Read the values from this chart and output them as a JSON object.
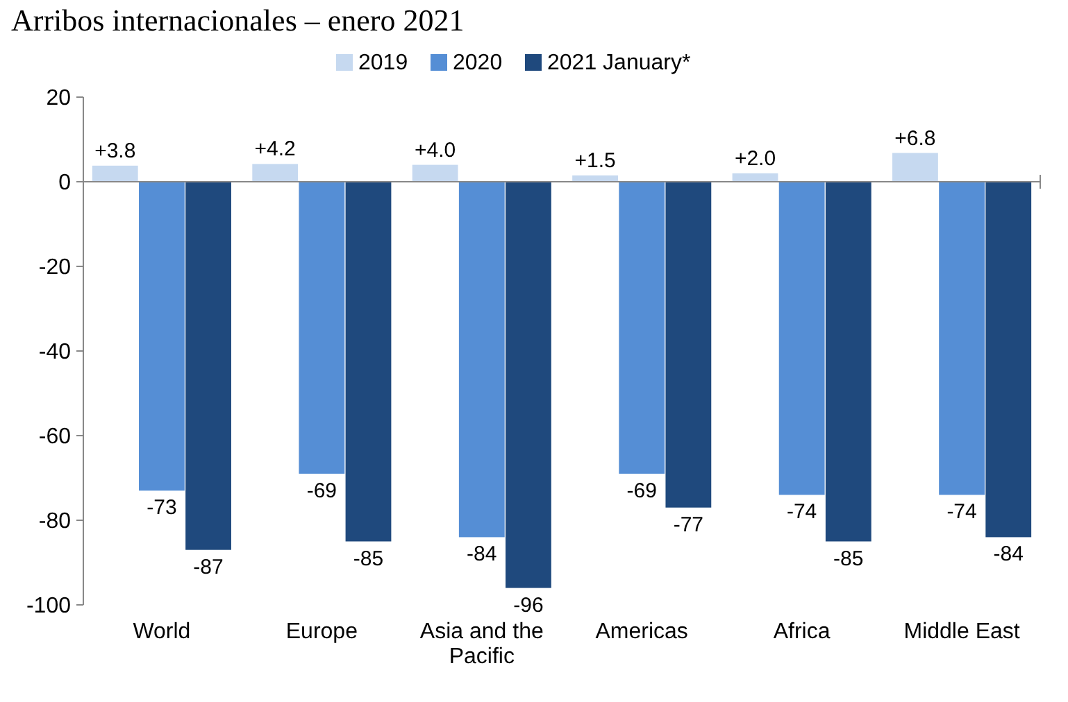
{
  "chart_data": {
    "type": "bar",
    "title": "Arribos internacionales – enero 2021",
    "categories": [
      "World",
      "Europe",
      "Asia and the Pacific",
      "Americas",
      "Africa",
      "Middle East"
    ],
    "series": [
      {
        "name": "2019",
        "color": "#c6d9f0",
        "values": [
          3.8,
          4.2,
          4.0,
          1.5,
          2.0,
          6.8
        ],
        "value_labels": [
          "+3.8",
          "+4.2",
          "+4.0",
          "+1.5",
          "+2.0",
          "+6.8"
        ]
      },
      {
        "name": "2020",
        "color": "#558ed5",
        "values": [
          -73,
          -69,
          -84,
          -69,
          -74,
          -74
        ],
        "value_labels": [
          "-73",
          "-69",
          "-84",
          "-69",
          "-74",
          "-74"
        ]
      },
      {
        "name": "2021 January*",
        "color": "#1f497d",
        "values": [
          -87,
          -85,
          -96,
          -77,
          -85,
          -84
        ],
        "value_labels": [
          "-87",
          "-85",
          "-96",
          "-77",
          "-85",
          "-84"
        ]
      }
    ],
    "ylim": [
      -100,
      20
    ],
    "yticks": [
      -100,
      -80,
      -60,
      -40,
      -20,
      0,
      20
    ],
    "legend": "top"
  }
}
